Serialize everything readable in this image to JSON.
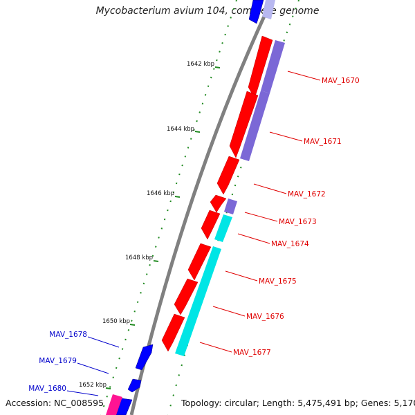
{
  "title": "Mycobacterium avium 104, complete genome",
  "accession": "Accession: NC_008595",
  "summary": "Topology: circular; Length: 5,475,491 bp; Genes: 5,170",
  "scale_labels": [
    "1642 kbp",
    "1644 kbp",
    "1646 kbp",
    "1648 kbp",
    "1650 kbp",
    "1652 kbp"
  ],
  "colors": {
    "backbone": "#808080",
    "forward_cds": "#ff0000",
    "reverse_cds": "#0000ff",
    "feature_cyan": "#00ffff",
    "feature_purple": "#7b68d6",
    "feature_magenta": "#ff1493",
    "tick": "#228b22",
    "label_red": "#e00000",
    "label_blue": "#0000cc"
  },
  "genes_right": [
    {
      "name": "MAV_1670"
    },
    {
      "name": "MAV_1671"
    },
    {
      "name": "MAV_1672"
    },
    {
      "name": "MAV_1673"
    },
    {
      "name": "MAV_1674"
    },
    {
      "name": "MAV_1675"
    },
    {
      "name": "MAV_1676"
    },
    {
      "name": "MAV_1677"
    }
  ],
  "genes_left": [
    {
      "name": "MAV_1678"
    },
    {
      "name": "MAV_1679"
    },
    {
      "name": "MAV_1680"
    }
  ]
}
